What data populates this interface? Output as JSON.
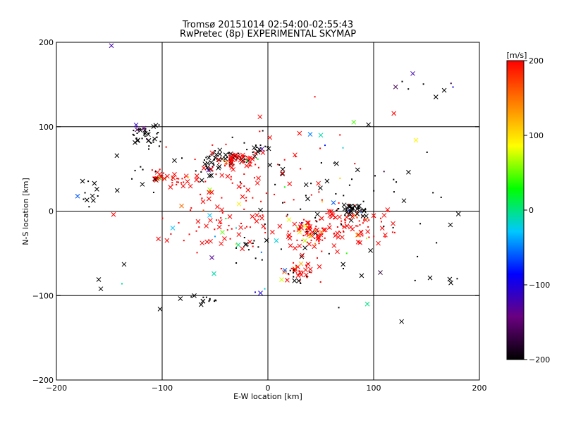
{
  "chart_data": {
    "type": "scatter",
    "title": "Tromsø 20151014 02:54:00-02:55:43",
    "subtitle": "RwPretec (8p) EXPERIMENTAL SKYMAP",
    "xlabel": "E-W location [km]",
    "ylabel": "N-S location [km]",
    "xlim": [
      -200,
      200
    ],
    "ylim": [
      -200,
      200
    ],
    "xticks": [
      -200,
      -100,
      0,
      100,
      200
    ],
    "yticks": [
      -200,
      -100,
      0,
      100,
      200
    ],
    "xtick_labels": [
      "−200",
      "−100",
      "0",
      "100",
      "200"
    ],
    "ytick_labels": [
      "−200",
      "−100",
      "0",
      "100",
      "200"
    ],
    "grid": true,
    "marker_types": [
      "x",
      "dot"
    ],
    "colorbar": {
      "label": "[m/s]",
      "range": [
        -200,
        200
      ],
      "ticks": [
        200,
        100,
        0,
        -100,
        -200
      ],
      "tick_labels": [
        "200",
        "100",
        "0",
        "−100",
        "−200"
      ],
      "colormap": [
        "#000000",
        "#6a0080",
        "#0000ff",
        "#00c8ff",
        "#00ff00",
        "#ffff00",
        "#ff8000",
        "#ff0000"
      ]
    },
    "clusters": [
      {
        "x": -115,
        "y": 90,
        "sx": 8,
        "sy": 8,
        "n": 45,
        "v": -200
      },
      {
        "x": -100,
        "y": 40,
        "sx": 8,
        "sy": 4,
        "n": 20,
        "v": 200
      },
      {
        "x": -78,
        "y": 36,
        "sx": 10,
        "sy": 4,
        "n": 22,
        "v": 200
      },
      {
        "x": -40,
        "y": 62,
        "sx": 14,
        "sy": 6,
        "n": 40,
        "v": -200
      },
      {
        "x": -28,
        "y": 60,
        "sx": 8,
        "sy": 5,
        "n": 45,
        "v": 200
      },
      {
        "x": -10,
        "y": 75,
        "sx": 8,
        "sy": 4,
        "n": 15,
        "v": -200
      },
      {
        "x": -55,
        "y": 50,
        "sx": 10,
        "sy": 8,
        "n": 18,
        "v": -200
      },
      {
        "x": -45,
        "y": 40,
        "sx": 20,
        "sy": 20,
        "n": 40,
        "v": 200
      },
      {
        "x": -170,
        "y": 20,
        "sx": 6,
        "sy": 10,
        "n": 12,
        "v": -200
      },
      {
        "x": -60,
        "y": -105,
        "sx": 8,
        "sy": 3,
        "n": 14,
        "v": -200
      },
      {
        "x": -40,
        "y": -15,
        "sx": 25,
        "sy": 20,
        "n": 60,
        "v": 200
      },
      {
        "x": -10,
        "y": -45,
        "sx": 15,
        "sy": 8,
        "n": 14,
        "v": -200
      },
      {
        "x": 30,
        "y": -70,
        "sx": 10,
        "sy": 7,
        "n": 35,
        "v": 200
      },
      {
        "x": 25,
        "y": -78,
        "sx": 6,
        "sy": 4,
        "n": 10,
        "v": -200
      },
      {
        "x": 40,
        "y": -25,
        "sx": 15,
        "sy": 12,
        "n": 60,
        "v": 200
      },
      {
        "x": 75,
        "y": -15,
        "sx": 25,
        "sy": 12,
        "n": 95,
        "v": 200
      },
      {
        "x": 80,
        "y": 2,
        "sx": 8,
        "sy": 4,
        "n": 40,
        "v": -200
      },
      {
        "x": 45,
        "y": 20,
        "sx": 30,
        "sy": 40,
        "n": 40,
        "v": -200
      },
      {
        "x": 20,
        "y": 40,
        "sx": 40,
        "sy": 40,
        "n": 40,
        "v": 200
      },
      {
        "x": 150,
        "y": 150,
        "sx": 25,
        "sy": 12,
        "n": 9,
        "v": -200
      },
      {
        "x": 130,
        "y": 25,
        "sx": 25,
        "sy": 20,
        "n": 14,
        "v": -200
      },
      {
        "x": -125,
        "y": 45,
        "sx": 15,
        "sy": 15,
        "n": 10,
        "v": -200
      },
      {
        "x": 100,
        "y": -60,
        "sx": 40,
        "sy": 25,
        "n": 15,
        "v": -200
      }
    ],
    "points": [
      {
        "x": -148,
        "y": 196,
        "m": "x",
        "v": -120
      },
      {
        "x": 137,
        "y": 163,
        "m": "x",
        "v": -120
      },
      {
        "x": 140,
        "y": 84,
        "m": "x",
        "v": 90
      },
      {
        "x": -146,
        "y": -4,
        "m": "x",
        "v": 200
      },
      {
        "x": -160,
        "y": -81,
        "m": "x",
        "v": -200
      },
      {
        "x": -158,
        "y": -92,
        "m": "x",
        "v": -200
      },
      {
        "x": -136,
        "y": -63,
        "m": "x",
        "v": -200
      },
      {
        "x": -102,
        "y": -116,
        "m": "x",
        "v": -200
      },
      {
        "x": 94,
        "y": -110,
        "m": "x",
        "v": 0
      },
      {
        "x": -55,
        "y": -5,
        "m": "x",
        "v": -30
      },
      {
        "x": -53,
        "y": -55,
        "m": "x",
        "v": -130
      },
      {
        "x": -51,
        "y": -74,
        "m": "x",
        "v": -10
      },
      {
        "x": -28,
        "y": -40,
        "m": "x",
        "v": 0
      },
      {
        "x": -12,
        "y": -96,
        "m": "dot",
        "v": -100
      },
      {
        "x": -7,
        "y": -97,
        "m": "x",
        "v": -100
      },
      {
        "x": -3,
        "y": -92,
        "m": "dot",
        "v": -20
      },
      {
        "x": 40,
        "y": 91,
        "m": "x",
        "v": -50
      },
      {
        "x": 50,
        "y": 90,
        "m": "x",
        "v": -10
      },
      {
        "x": 54,
        "y": 78,
        "m": "dot",
        "v": -80
      },
      {
        "x": 71,
        "y": 75,
        "m": "dot",
        "v": -20
      },
      {
        "x": 88,
        "y": -1,
        "m": "dot",
        "v": -50
      },
      {
        "x": 16,
        "y": -70,
        "m": "x",
        "v": -60
      },
      {
        "x": 20,
        "y": -10,
        "m": "x",
        "v": 80
      },
      {
        "x": 35,
        "y": -35,
        "m": "x",
        "v": 70
      },
      {
        "x": -43,
        "y": -25,
        "m": "x",
        "v": 50
      },
      {
        "x": -50,
        "y": -30,
        "m": "dot",
        "v": -40
      },
      {
        "x": -90,
        "y": -20,
        "m": "x",
        "v": -30
      },
      {
        "x": 62,
        "y": 10,
        "m": "x",
        "v": -60
      },
      {
        "x": 30,
        "y": -25,
        "m": "x",
        "v": 100
      },
      {
        "x": -30,
        "y": -20,
        "m": "dot",
        "v": -20
      },
      {
        "x": 8,
        "y": -35,
        "m": "x",
        "v": -20
      },
      {
        "x": 173,
        "y": -85,
        "m": "x",
        "v": -200
      },
      {
        "x": 179,
        "y": -80,
        "m": "dot",
        "v": -200
      },
      {
        "x": -138,
        "y": -86,
        "m": "dot",
        "v": -10
      }
    ]
  }
}
